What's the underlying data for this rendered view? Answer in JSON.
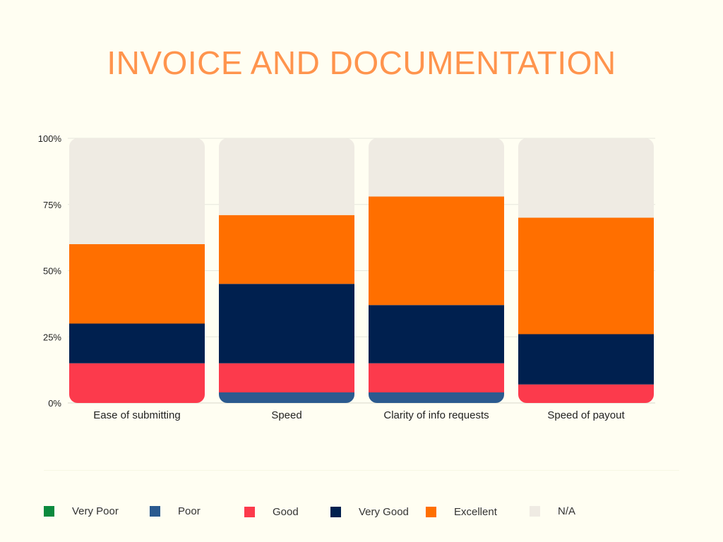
{
  "chart_data": {
    "type": "bar",
    "stacked": true,
    "title": "INVOICE AND DOCUMENTATION",
    "categories": [
      "Ease of submitting",
      "Speed",
      "Clarity of info requests",
      "Speed of payout"
    ],
    "y_ticks": [
      "0%",
      "25%",
      "50%",
      "75%",
      "100%"
    ],
    "ylim": [
      0,
      100
    ],
    "grid": true,
    "legend_position": "bottom",
    "series": [
      {
        "name": "Very Poor",
        "color": "#0b8a3e",
        "values": [
          0,
          0,
          0,
          0
        ]
      },
      {
        "name": "Poor",
        "color": "#2b5a8f",
        "values": [
          0,
          4,
          4,
          0
        ]
      },
      {
        "name": "Good",
        "color": "#fc3a4c",
        "values": [
          15,
          11,
          11,
          7
        ]
      },
      {
        "name": "Very Good",
        "color": "#00204f",
        "values": [
          15,
          30,
          22,
          19
        ]
      },
      {
        "name": "Excellent",
        "color": "#ff6f00",
        "values": [
          30,
          26,
          41,
          44
        ]
      },
      {
        "name": "N/A",
        "color": "#efebe3",
        "values": [
          40,
          29,
          22,
          30
        ]
      }
    ]
  }
}
